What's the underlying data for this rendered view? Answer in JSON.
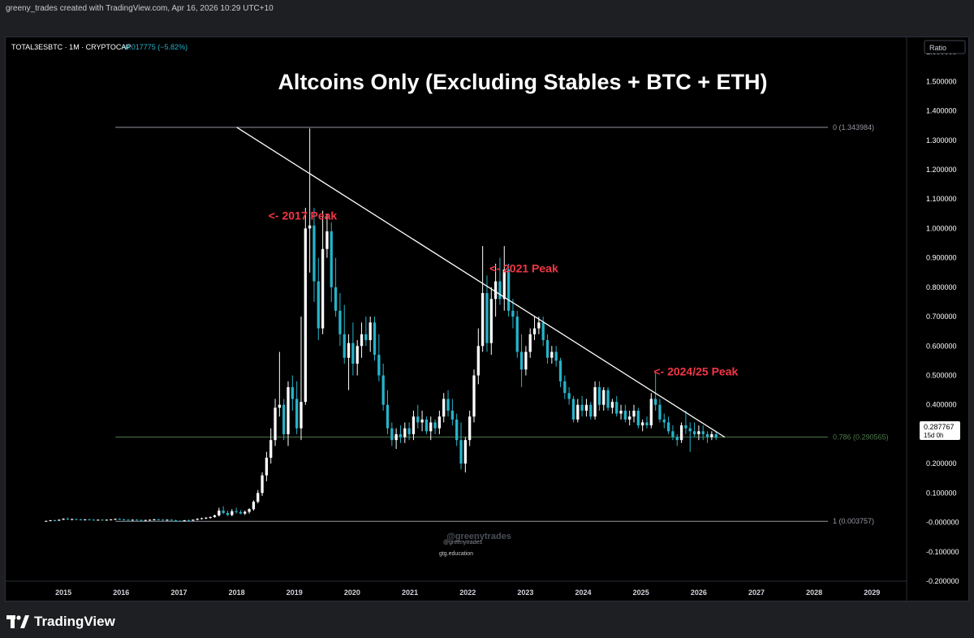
{
  "header": {
    "attribution": "greeny_trades created with TradingView.com, Apr 16, 2026 10:29 UTC+10"
  },
  "legend": {
    "symbol": "TOTAL3ESBTC · 1M · CRYPTOCAP",
    "change": "−0.017775 (−5.82%)"
  },
  "scale_button": "Ratio",
  "price_tag": {
    "value": "0.287767",
    "countdown": "15d 0h"
  },
  "watermark": {
    "handle": "@greenytrades",
    "handle_small": "@greenytrades",
    "site": "gtg.education"
  },
  "brand": {
    "name": "TradingView"
  },
  "colors": {
    "up": "#ffffff",
    "down": "#26b3c9",
    "annotation": "#f23645",
    "fib_mid": "#4c7a4c"
  },
  "chart_data": {
    "type": "candlestick",
    "title": "Altcoins Only (Excluding Stables + BTC + ETH)",
    "ylim": [
      -0.2,
      1.65
    ],
    "xlim": [
      2014.0,
      2029.6
    ],
    "y_ticks": [
      1.6,
      1.5,
      1.4,
      1.3,
      1.2,
      1.1,
      1.0,
      0.9,
      0.8,
      0.7,
      0.6,
      0.5,
      0.4,
      0.3,
      0.2,
      0.1,
      0.0,
      -0.1,
      -0.2
    ],
    "y_tick_labels": [
      "1.600000",
      "1.500000",
      "1.400000",
      "1.300000",
      "1.200000",
      "1.100000",
      "1.000000",
      "0.900000",
      "0.800000",
      "0.700000",
      "0.600000",
      "0.500000",
      "0.400000",
      "0.300000",
      "0.200000",
      "0.100000",
      "-0.000000",
      "-0.100000",
      "-0.200000"
    ],
    "x_ticks": [
      2015,
      2016,
      2017,
      2018,
      2019,
      2020,
      2021,
      2022,
      2023,
      2024,
      2025,
      2026,
      2027,
      2028,
      2029
    ],
    "x_tick_labels": [
      "2015",
      "2016",
      "2017",
      "2018",
      "2019",
      "2020",
      "2021",
      "2022",
      "2023",
      "2024",
      "2025",
      "2026",
      "2027",
      "2028",
      "2029"
    ],
    "fib_levels": [
      {
        "label": "0 (1.343984)",
        "value": 1.343984,
        "from": 2015.9,
        "color": "#9598a1"
      },
      {
        "label": "0.786 (0.290565)",
        "value": 0.290565,
        "from": 2015.9,
        "color": "#4c7a4c"
      },
      {
        "label": "1 (0.003757)",
        "value": 0.003757,
        "from": 2015.9,
        "color": "#9598a1"
      }
    ],
    "trendline": {
      "x1": 2018.0,
      "y1": 1.343984,
      "x2": 2026.45,
      "y2": 0.29
    },
    "annotations": [
      {
        "text": "<- 2017 Peak",
        "x": 2018.55,
        "y": 1.03
      },
      {
        "text": "<- 2021 Peak",
        "x": 2022.38,
        "y": 0.85
      },
      {
        "text": "<- 2024/25 Peak",
        "x": 2025.22,
        "y": 0.5
      }
    ],
    "candles_ohlc": [
      [
        0.004,
        0.006,
        0.003,
        0.005
      ],
      [
        0.005,
        0.008,
        0.004,
        0.007
      ],
      [
        0.007,
        0.009,
        0.005,
        0.006
      ],
      [
        0.006,
        0.01,
        0.005,
        0.009
      ],
      [
        0.009,
        0.014,
        0.008,
        0.012
      ],
      [
        0.012,
        0.016,
        0.009,
        0.01
      ],
      [
        0.01,
        0.013,
        0.008,
        0.011
      ],
      [
        0.011,
        0.013,
        0.009,
        0.01
      ],
      [
        0.01,
        0.012,
        0.008,
        0.009
      ],
      [
        0.009,
        0.011,
        0.007,
        0.01
      ],
      [
        0.01,
        0.012,
        0.008,
        0.009
      ],
      [
        0.009,
        0.011,
        0.007,
        0.008
      ],
      [
        0.008,
        0.01,
        0.006,
        0.009
      ],
      [
        0.009,
        0.011,
        0.007,
        0.008
      ],
      [
        0.008,
        0.01,
        0.006,
        0.009
      ],
      [
        0.009,
        0.011,
        0.007,
        0.01
      ],
      [
        0.01,
        0.013,
        0.008,
        0.012
      ],
      [
        0.012,
        0.014,
        0.009,
        0.01
      ],
      [
        0.01,
        0.012,
        0.008,
        0.009
      ],
      [
        0.009,
        0.011,
        0.007,
        0.008
      ],
      [
        0.008,
        0.01,
        0.006,
        0.009
      ],
      [
        0.009,
        0.011,
        0.007,
        0.008
      ],
      [
        0.008,
        0.01,
        0.006,
        0.007
      ],
      [
        0.007,
        0.009,
        0.005,
        0.008
      ],
      [
        0.008,
        0.01,
        0.006,
        0.009
      ],
      [
        0.009,
        0.012,
        0.007,
        0.01
      ],
      [
        0.01,
        0.012,
        0.008,
        0.009
      ],
      [
        0.009,
        0.011,
        0.007,
        0.008
      ],
      [
        0.008,
        0.01,
        0.006,
        0.009
      ],
      [
        0.009,
        0.011,
        0.006,
        0.007
      ],
      [
        0.007,
        0.009,
        0.004,
        0.005
      ],
      [
        0.005,
        0.007,
        0.003,
        0.004
      ],
      [
        0.004,
        0.008,
        0.003,
        0.007
      ],
      [
        0.007,
        0.01,
        0.005,
        0.006
      ],
      [
        0.006,
        0.01,
        0.005,
        0.009
      ],
      [
        0.009,
        0.014,
        0.007,
        0.012
      ],
      [
        0.012,
        0.016,
        0.01,
        0.014
      ],
      [
        0.014,
        0.018,
        0.011,
        0.016
      ],
      [
        0.016,
        0.02,
        0.013,
        0.018
      ],
      [
        0.018,
        0.026,
        0.016,
        0.024
      ],
      [
        0.024,
        0.05,
        0.02,
        0.04
      ],
      [
        0.04,
        0.055,
        0.028,
        0.032
      ],
      [
        0.032,
        0.04,
        0.022,
        0.025
      ],
      [
        0.025,
        0.045,
        0.021,
        0.038
      ],
      [
        0.038,
        0.05,
        0.03,
        0.035
      ],
      [
        0.035,
        0.042,
        0.028,
        0.03
      ],
      [
        0.03,
        0.04,
        0.025,
        0.036
      ],
      [
        0.036,
        0.048,
        0.03,
        0.045
      ],
      [
        0.045,
        0.075,
        0.04,
        0.07
      ],
      [
        0.07,
        0.11,
        0.065,
        0.1
      ],
      [
        0.1,
        0.17,
        0.09,
        0.16
      ],
      [
        0.16,
        0.24,
        0.14,
        0.22
      ],
      [
        0.22,
        0.32,
        0.2,
        0.28
      ],
      [
        0.28,
        0.42,
        0.26,
        0.39
      ],
      [
        0.39,
        0.58,
        0.36,
        0.4
      ],
      [
        0.4,
        0.42,
        0.28,
        0.3
      ],
      [
        0.3,
        0.48,
        0.26,
        0.46
      ],
      [
        0.46,
        0.5,
        0.38,
        0.42
      ],
      [
        0.42,
        0.48,
        0.3,
        0.32
      ],
      [
        0.32,
        0.7,
        0.28,
        0.41
      ],
      [
        0.41,
        1.07,
        0.4,
        1.0
      ],
      [
        1.0,
        1.34,
        0.85,
        1.01
      ],
      [
        1.01,
        1.07,
        0.75,
        0.82
      ],
      [
        0.82,
        0.9,
        0.62,
        0.66
      ],
      [
        0.66,
        1.06,
        0.64,
        0.93
      ],
      [
        0.93,
        1.05,
        0.9,
        0.99
      ],
      [
        0.99,
        1.02,
        0.75,
        0.8
      ],
      [
        0.8,
        0.9,
        0.7,
        0.72
      ],
      [
        0.72,
        0.78,
        0.6,
        0.64
      ],
      [
        0.64,
        0.74,
        0.54,
        0.56
      ],
      [
        0.56,
        0.64,
        0.45,
        0.61
      ],
      [
        0.61,
        0.68,
        0.5,
        0.54
      ],
      [
        0.54,
        0.62,
        0.5,
        0.6
      ],
      [
        0.6,
        0.68,
        0.56,
        0.64
      ],
      [
        0.64,
        0.7,
        0.6,
        0.62
      ],
      [
        0.62,
        0.7,
        0.58,
        0.68
      ],
      [
        0.68,
        0.7,
        0.55,
        0.57
      ],
      [
        0.57,
        0.64,
        0.48,
        0.5
      ],
      [
        0.5,
        0.54,
        0.38,
        0.4
      ],
      [
        0.4,
        0.45,
        0.3,
        0.32
      ],
      [
        0.32,
        0.34,
        0.26,
        0.28
      ],
      [
        0.28,
        0.32,
        0.25,
        0.3
      ],
      [
        0.3,
        0.33,
        0.27,
        0.29
      ],
      [
        0.29,
        0.34,
        0.27,
        0.32
      ],
      [
        0.32,
        0.34,
        0.28,
        0.3
      ],
      [
        0.3,
        0.38,
        0.28,
        0.36
      ],
      [
        0.36,
        0.4,
        0.32,
        0.34
      ],
      [
        0.34,
        0.38,
        0.31,
        0.35
      ],
      [
        0.35,
        0.36,
        0.3,
        0.31
      ],
      [
        0.31,
        0.36,
        0.28,
        0.34
      ],
      [
        0.34,
        0.35,
        0.3,
        0.32
      ],
      [
        0.32,
        0.38,
        0.3,
        0.36
      ],
      [
        0.36,
        0.44,
        0.34,
        0.42
      ],
      [
        0.42,
        0.45,
        0.36,
        0.38
      ],
      [
        0.38,
        0.42,
        0.33,
        0.35
      ],
      [
        0.35,
        0.37,
        0.26,
        0.28
      ],
      [
        0.28,
        0.34,
        0.18,
        0.2
      ],
      [
        0.2,
        0.29,
        0.17,
        0.28
      ],
      [
        0.28,
        0.38,
        0.26,
        0.36
      ],
      [
        0.36,
        0.52,
        0.34,
        0.5
      ],
      [
        0.5,
        0.66,
        0.47,
        0.6
      ],
      [
        0.6,
        0.94,
        0.58,
        0.78
      ],
      [
        0.78,
        0.84,
        0.58,
        0.61
      ],
      [
        0.61,
        0.8,
        0.57,
        0.76
      ],
      [
        0.76,
        0.88,
        0.7,
        0.82
      ],
      [
        0.82,
        0.9,
        0.74,
        0.76
      ],
      [
        0.76,
        0.94,
        0.72,
        0.86
      ],
      [
        0.86,
        0.88,
        0.7,
        0.72
      ],
      [
        0.72,
        0.76,
        0.66,
        0.7
      ],
      [
        0.7,
        0.72,
        0.56,
        0.58
      ],
      [
        0.58,
        0.64,
        0.46,
        0.52
      ],
      [
        0.52,
        0.6,
        0.5,
        0.58
      ],
      [
        0.58,
        0.66,
        0.56,
        0.64
      ],
      [
        0.64,
        0.7,
        0.62,
        0.66
      ],
      [
        0.66,
        0.7,
        0.64,
        0.68
      ],
      [
        0.68,
        0.7,
        0.6,
        0.62
      ],
      [
        0.62,
        0.64,
        0.54,
        0.56
      ],
      [
        0.56,
        0.6,
        0.54,
        0.58
      ],
      [
        0.58,
        0.6,
        0.53,
        0.55
      ],
      [
        0.55,
        0.56,
        0.46,
        0.48
      ],
      [
        0.48,
        0.5,
        0.42,
        0.44
      ],
      [
        0.44,
        0.46,
        0.4,
        0.42
      ],
      [
        0.42,
        0.43,
        0.34,
        0.35
      ],
      [
        0.35,
        0.42,
        0.34,
        0.4
      ],
      [
        0.4,
        0.43,
        0.36,
        0.38
      ],
      [
        0.38,
        0.42,
        0.36,
        0.4
      ],
      [
        0.4,
        0.41,
        0.35,
        0.36
      ],
      [
        0.36,
        0.48,
        0.35,
        0.46
      ],
      [
        0.46,
        0.48,
        0.38,
        0.4
      ],
      [
        0.4,
        0.46,
        0.38,
        0.45
      ],
      [
        0.45,
        0.46,
        0.38,
        0.39
      ],
      [
        0.39,
        0.42,
        0.37,
        0.41
      ],
      [
        0.41,
        0.43,
        0.36,
        0.37
      ],
      [
        0.37,
        0.4,
        0.35,
        0.38
      ],
      [
        0.38,
        0.4,
        0.34,
        0.35
      ],
      [
        0.35,
        0.38,
        0.33,
        0.36
      ],
      [
        0.36,
        0.4,
        0.34,
        0.38
      ],
      [
        0.38,
        0.39,
        0.32,
        0.33
      ],
      [
        0.33,
        0.35,
        0.31,
        0.34
      ],
      [
        0.34,
        0.36,
        0.32,
        0.33
      ],
      [
        0.33,
        0.44,
        0.32,
        0.42
      ],
      [
        0.42,
        0.51,
        0.38,
        0.4
      ],
      [
        0.4,
        0.42,
        0.34,
        0.35
      ],
      [
        0.35,
        0.37,
        0.32,
        0.34
      ],
      [
        0.34,
        0.36,
        0.3,
        0.31
      ],
      [
        0.31,
        0.33,
        0.28,
        0.29
      ],
      [
        0.29,
        0.3,
        0.26,
        0.28
      ],
      [
        0.28,
        0.34,
        0.27,
        0.33
      ],
      [
        0.33,
        0.38,
        0.3,
        0.32
      ],
      [
        0.32,
        0.34,
        0.24,
        0.31
      ],
      [
        0.31,
        0.34,
        0.29,
        0.3
      ],
      [
        0.3,
        0.33,
        0.28,
        0.31
      ],
      [
        0.31,
        0.33,
        0.28,
        0.3
      ],
      [
        0.3,
        0.31,
        0.27,
        0.29
      ],
      [
        0.29,
        0.31,
        0.28,
        0.3
      ],
      [
        0.3,
        0.31,
        0.28,
        0.288
      ]
    ]
  }
}
